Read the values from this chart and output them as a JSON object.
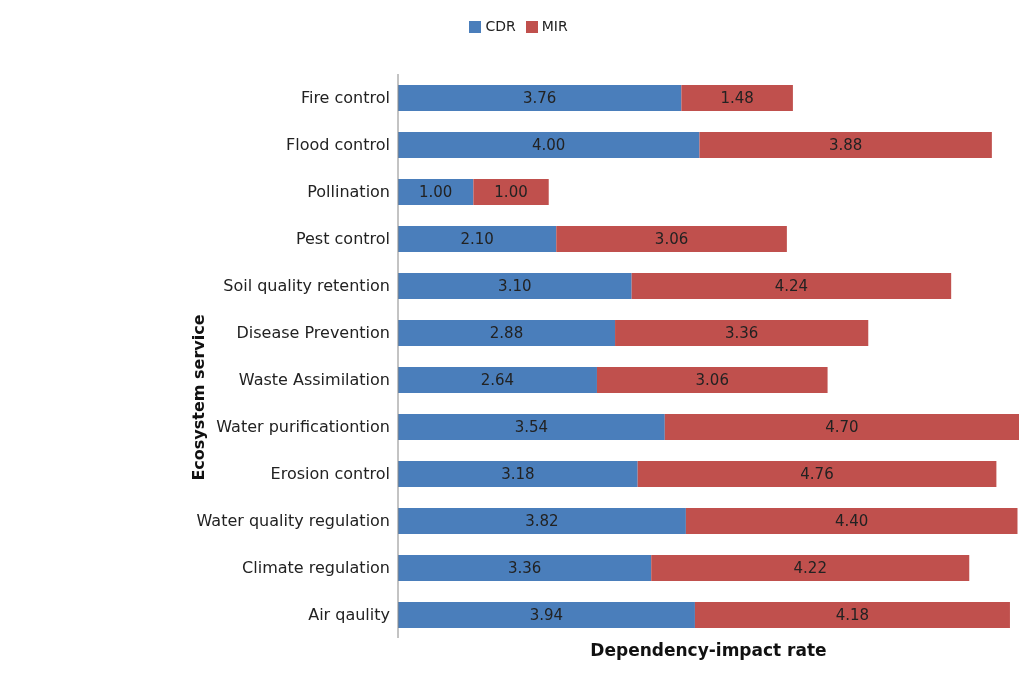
{
  "chart_data": {
    "type": "bar",
    "orientation": "horizontal",
    "stacked": true,
    "legend": "top",
    "grid": false,
    "xlabel": "Dependency-impact rate",
    "ylabel": "Ecosystem service",
    "categories": [
      "Fire control",
      "Flood control",
      "Pollination",
      "Pest control",
      "Soil quality retention",
      "Disease Prevention",
      "Waste Assimilation",
      "Water purificationtion",
      "Erosion control",
      "Water quality regulation",
      "Climate regulation",
      "Air qaulity"
    ],
    "series": [
      {
        "name": "CDR",
        "color": "#4a7ebb",
        "values": [
          3.76,
          4.0,
          1.0,
          2.1,
          3.1,
          2.88,
          2.64,
          3.54,
          3.18,
          3.82,
          3.36,
          3.94
        ],
        "value_labels": [
          "3.76",
          "4.00",
          "1.00",
          "2.10",
          "3.10",
          "2.88",
          "2.64",
          "3.54",
          "3.18",
          "3.82",
          "3.36",
          "3.94"
        ]
      },
      {
        "name": "MIR",
        "color": "#c0504d",
        "values": [
          1.48,
          3.88,
          1.0,
          3.06,
          4.24,
          3.36,
          3.06,
          4.7,
          4.76,
          4.4,
          4.22,
          4.18
        ],
        "value_labels": [
          "1.48",
          "3.88",
          "1.00",
          "3.06",
          "4.24",
          "3.36",
          "3.06",
          "4.70",
          "4.76",
          "4.40",
          "4.22",
          "4.18"
        ]
      }
    ]
  }
}
